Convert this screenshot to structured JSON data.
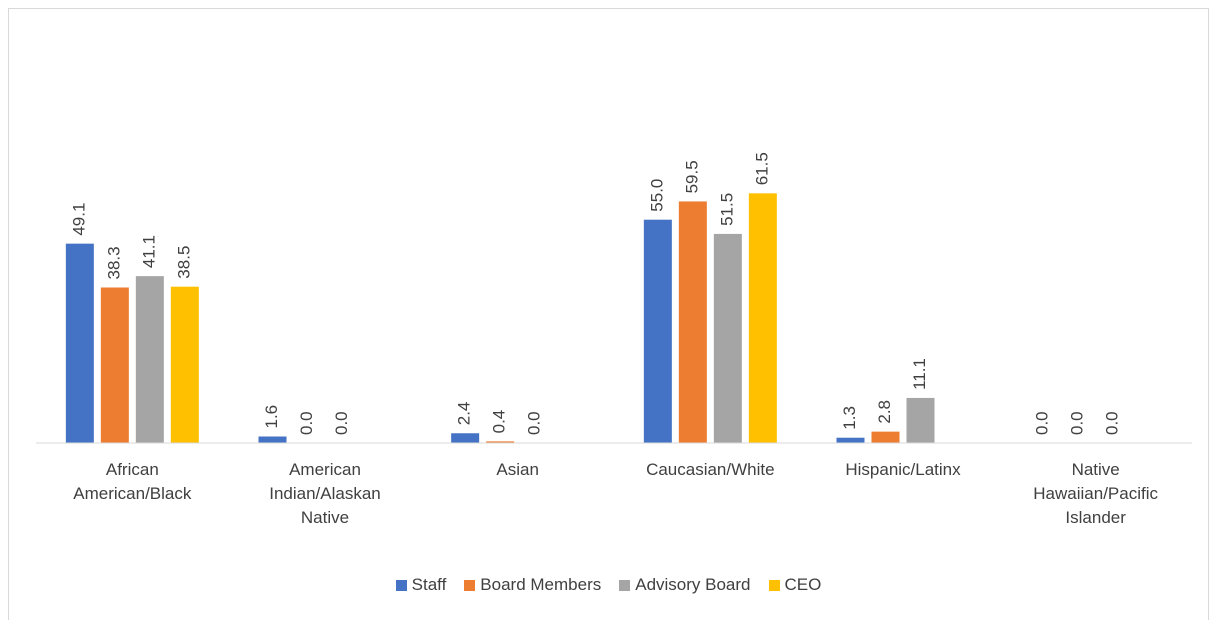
{
  "chart_data": {
    "type": "bar",
    "categories": [
      "African American/Black",
      "American Indian/Alaskan Native",
      "Asian",
      "Caucasian/White",
      "Hispanic/Latinx",
      "Native Hawaiian/Pacific Islander"
    ],
    "series": [
      {
        "name": "Staff",
        "color": "#4472c4",
        "values": [
          49.1,
          1.6,
          2.4,
          55.0,
          1.3,
          0.0
        ],
        "value_labels": [
          "49.1",
          "1.6",
          "2.4",
          "55.0",
          "1.3",
          "0.0"
        ]
      },
      {
        "name": "Board Members",
        "color": "#ed7d31",
        "values": [
          38.3,
          0.0,
          0.4,
          59.5,
          2.8,
          0.0
        ],
        "value_labels": [
          "38.3",
          "0.0",
          "0.4",
          "59.5",
          "2.8",
          "0.0"
        ]
      },
      {
        "name": "Advisory Board",
        "color": "#a5a5a5",
        "values": [
          41.1,
          0.0,
          0.0,
          51.5,
          11.1,
          0.0
        ],
        "value_labels": [
          "41.1",
          "0.0",
          "0.0",
          "51.5",
          "11.1",
          "0.0"
        ]
      },
      {
        "name": "CEO",
        "color": "#ffc000",
        "values": [
          38.5,
          null,
          null,
          61.5,
          null,
          null
        ],
        "value_labels": [
          "38.5",
          null,
          null,
          "61.5",
          null,
          null
        ]
      }
    ],
    "ylim": [
      0,
      100
    ],
    "legend": "bottom"
  }
}
